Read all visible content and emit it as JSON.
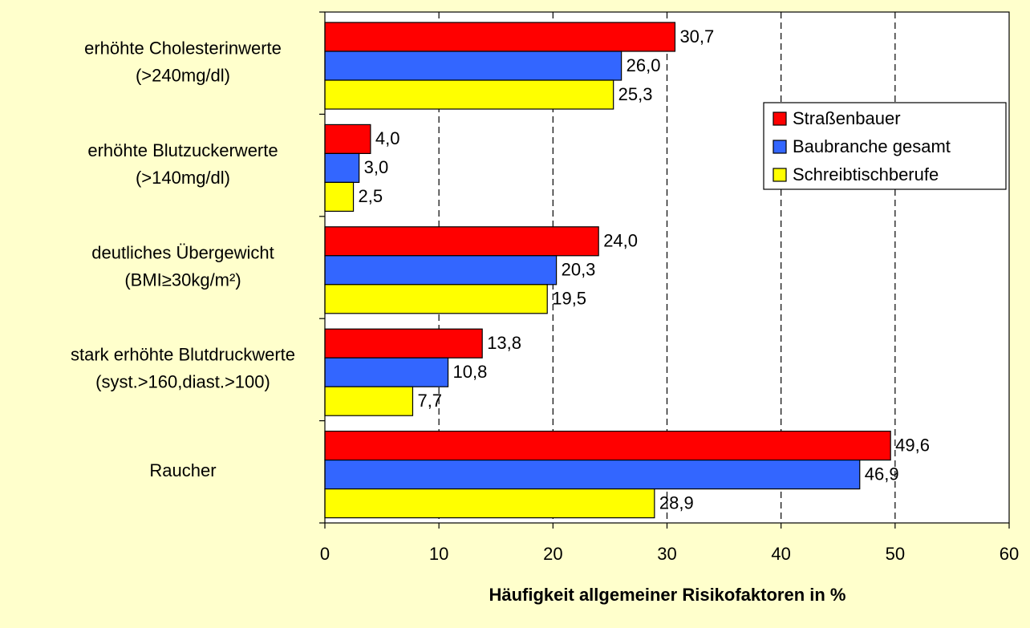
{
  "chart_data": {
    "type": "bar",
    "orientation": "horizontal",
    "categories": [
      [
        "erhöhte Cholesterinwerte",
        "(>240mg/dl)"
      ],
      [
        "erhöhte Blutzuckerwerte",
        "(>140mg/dl)"
      ],
      [
        "deutliches Übergewicht",
        "(BMI≥30kg/m²)"
      ],
      [
        "stark erhöhte Blutdruckwerte",
        "(syst.>160,diast.>100)"
      ],
      [
        "Raucher"
      ]
    ],
    "series": [
      {
        "name": "Straßenbauer",
        "color": "#ff0000",
        "values": [
          30.7,
          4.0,
          24.0,
          13.8,
          49.6
        ],
        "value_labels": [
          "30,7",
          "4,0",
          "24,0",
          "13,8",
          "49,6"
        ]
      },
      {
        "name": "Baubranche gesamt",
        "color": "#3366ff",
        "values": [
          26.0,
          3.0,
          20.3,
          10.8,
          46.9
        ],
        "value_labels": [
          "26,0",
          "3,0",
          "20,3",
          "10,8",
          "46,9"
        ]
      },
      {
        "name": "Schreibtischberufe",
        "color": "#ffff00",
        "values": [
          25.3,
          2.5,
          19.5,
          7.7,
          28.9
        ],
        "value_labels": [
          "25,3",
          "2,5",
          "19,5",
          "7,7",
          "28,9"
        ]
      }
    ],
    "x_label": "Häufigkeit allgemeiner Risikofaktoren in %",
    "xlim": [
      0,
      60
    ],
    "xticks": [
      0,
      10,
      20,
      30,
      40,
      50,
      60
    ],
    "grid": true,
    "legend": "upper right"
  }
}
